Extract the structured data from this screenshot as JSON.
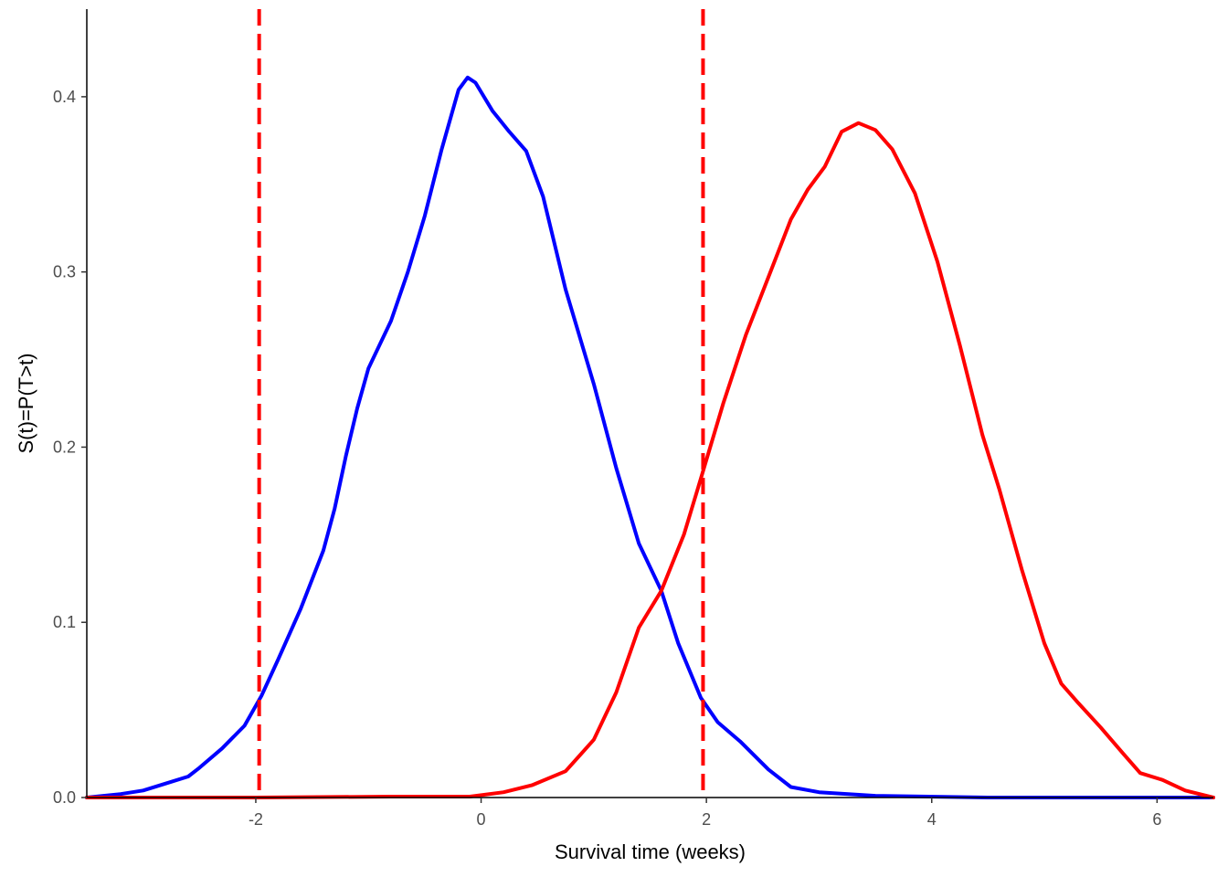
{
  "chart_data": {
    "type": "line",
    "title": "",
    "xlabel": "Survival time (weeks)",
    "ylabel": "S(t)=P(T>t)",
    "xlim": [
      -3.5,
      6.5
    ],
    "ylim": [
      0,
      0.45
    ],
    "xticks": [
      -2,
      0,
      2,
      4,
      6
    ],
    "xtick_labels": [
      "-2",
      "0",
      "2",
      "4",
      "6"
    ],
    "yticks": [
      0,
      0.1,
      0.2,
      0.3,
      0.4
    ],
    "ytick_labels": [
      "0.0",
      "0.1",
      "0.2",
      "0.3",
      "0.4"
    ],
    "grid": false,
    "series": [
      {
        "name": "blue density",
        "color": "#0000ff",
        "points": [
          [
            -3.5,
            0.0
          ],
          [
            -3.2,
            0.002
          ],
          [
            -3.0,
            0.004
          ],
          [
            -2.8,
            0.008
          ],
          [
            -2.6,
            0.012
          ],
          [
            -2.5,
            0.017
          ],
          [
            -2.3,
            0.028
          ],
          [
            -2.1,
            0.041
          ],
          [
            -1.95,
            0.058
          ],
          [
            -1.8,
            0.079
          ],
          [
            -1.6,
            0.108
          ],
          [
            -1.4,
            0.141
          ],
          [
            -1.3,
            0.165
          ],
          [
            -1.2,
            0.195
          ],
          [
            -1.1,
            0.222
          ],
          [
            -1.0,
            0.245
          ],
          [
            -0.8,
            0.272
          ],
          [
            -0.65,
            0.3
          ],
          [
            -0.5,
            0.332
          ],
          [
            -0.35,
            0.37
          ],
          [
            -0.2,
            0.404
          ],
          [
            -0.12,
            0.411
          ],
          [
            -0.05,
            0.408
          ],
          [
            0.1,
            0.392
          ],
          [
            0.25,
            0.38
          ],
          [
            0.4,
            0.369
          ],
          [
            0.55,
            0.343
          ],
          [
            0.75,
            0.29
          ],
          [
            1.0,
            0.236
          ],
          [
            1.2,
            0.188
          ],
          [
            1.4,
            0.145
          ],
          [
            1.6,
            0.118
          ],
          [
            1.75,
            0.088
          ],
          [
            1.95,
            0.057
          ],
          [
            2.1,
            0.043
          ],
          [
            2.3,
            0.032
          ],
          [
            2.55,
            0.016
          ],
          [
            2.75,
            0.006
          ],
          [
            3.0,
            0.003
          ],
          [
            3.5,
            0.001
          ],
          [
            4.5,
            0.0
          ],
          [
            6.5,
            0.0
          ]
        ]
      },
      {
        "name": "red density",
        "color": "#ff0000",
        "points": [
          [
            -3.5,
            0.0
          ],
          [
            -2.0,
            0.0
          ],
          [
            -0.8,
            0.0005
          ],
          [
            -0.1,
            0.0005
          ],
          [
            0.2,
            0.003
          ],
          [
            0.45,
            0.007
          ],
          [
            0.75,
            0.015
          ],
          [
            1.0,
            0.033
          ],
          [
            1.2,
            0.06
          ],
          [
            1.4,
            0.097
          ],
          [
            1.6,
            0.118
          ],
          [
            1.8,
            0.15
          ],
          [
            1.95,
            0.182
          ],
          [
            2.15,
            0.225
          ],
          [
            2.35,
            0.264
          ],
          [
            2.55,
            0.297
          ],
          [
            2.75,
            0.33
          ],
          [
            2.9,
            0.347
          ],
          [
            3.05,
            0.36
          ],
          [
            3.2,
            0.38
          ],
          [
            3.35,
            0.385
          ],
          [
            3.5,
            0.381
          ],
          [
            3.65,
            0.37
          ],
          [
            3.85,
            0.345
          ],
          [
            4.05,
            0.306
          ],
          [
            4.25,
            0.258
          ],
          [
            4.45,
            0.207
          ],
          [
            4.6,
            0.176
          ],
          [
            4.8,
            0.13
          ],
          [
            5.0,
            0.088
          ],
          [
            5.15,
            0.065
          ],
          [
            5.3,
            0.054
          ],
          [
            5.5,
            0.04
          ],
          [
            5.7,
            0.025
          ],
          [
            5.85,
            0.014
          ],
          [
            6.05,
            0.01
          ],
          [
            6.25,
            0.004
          ],
          [
            6.5,
            0.0
          ]
        ]
      }
    ],
    "vlines": [
      {
        "x": -1.97,
        "color": "#ff0000",
        "style": "dashed"
      },
      {
        "x": 1.97,
        "color": "#ff0000",
        "style": "dashed"
      }
    ]
  }
}
